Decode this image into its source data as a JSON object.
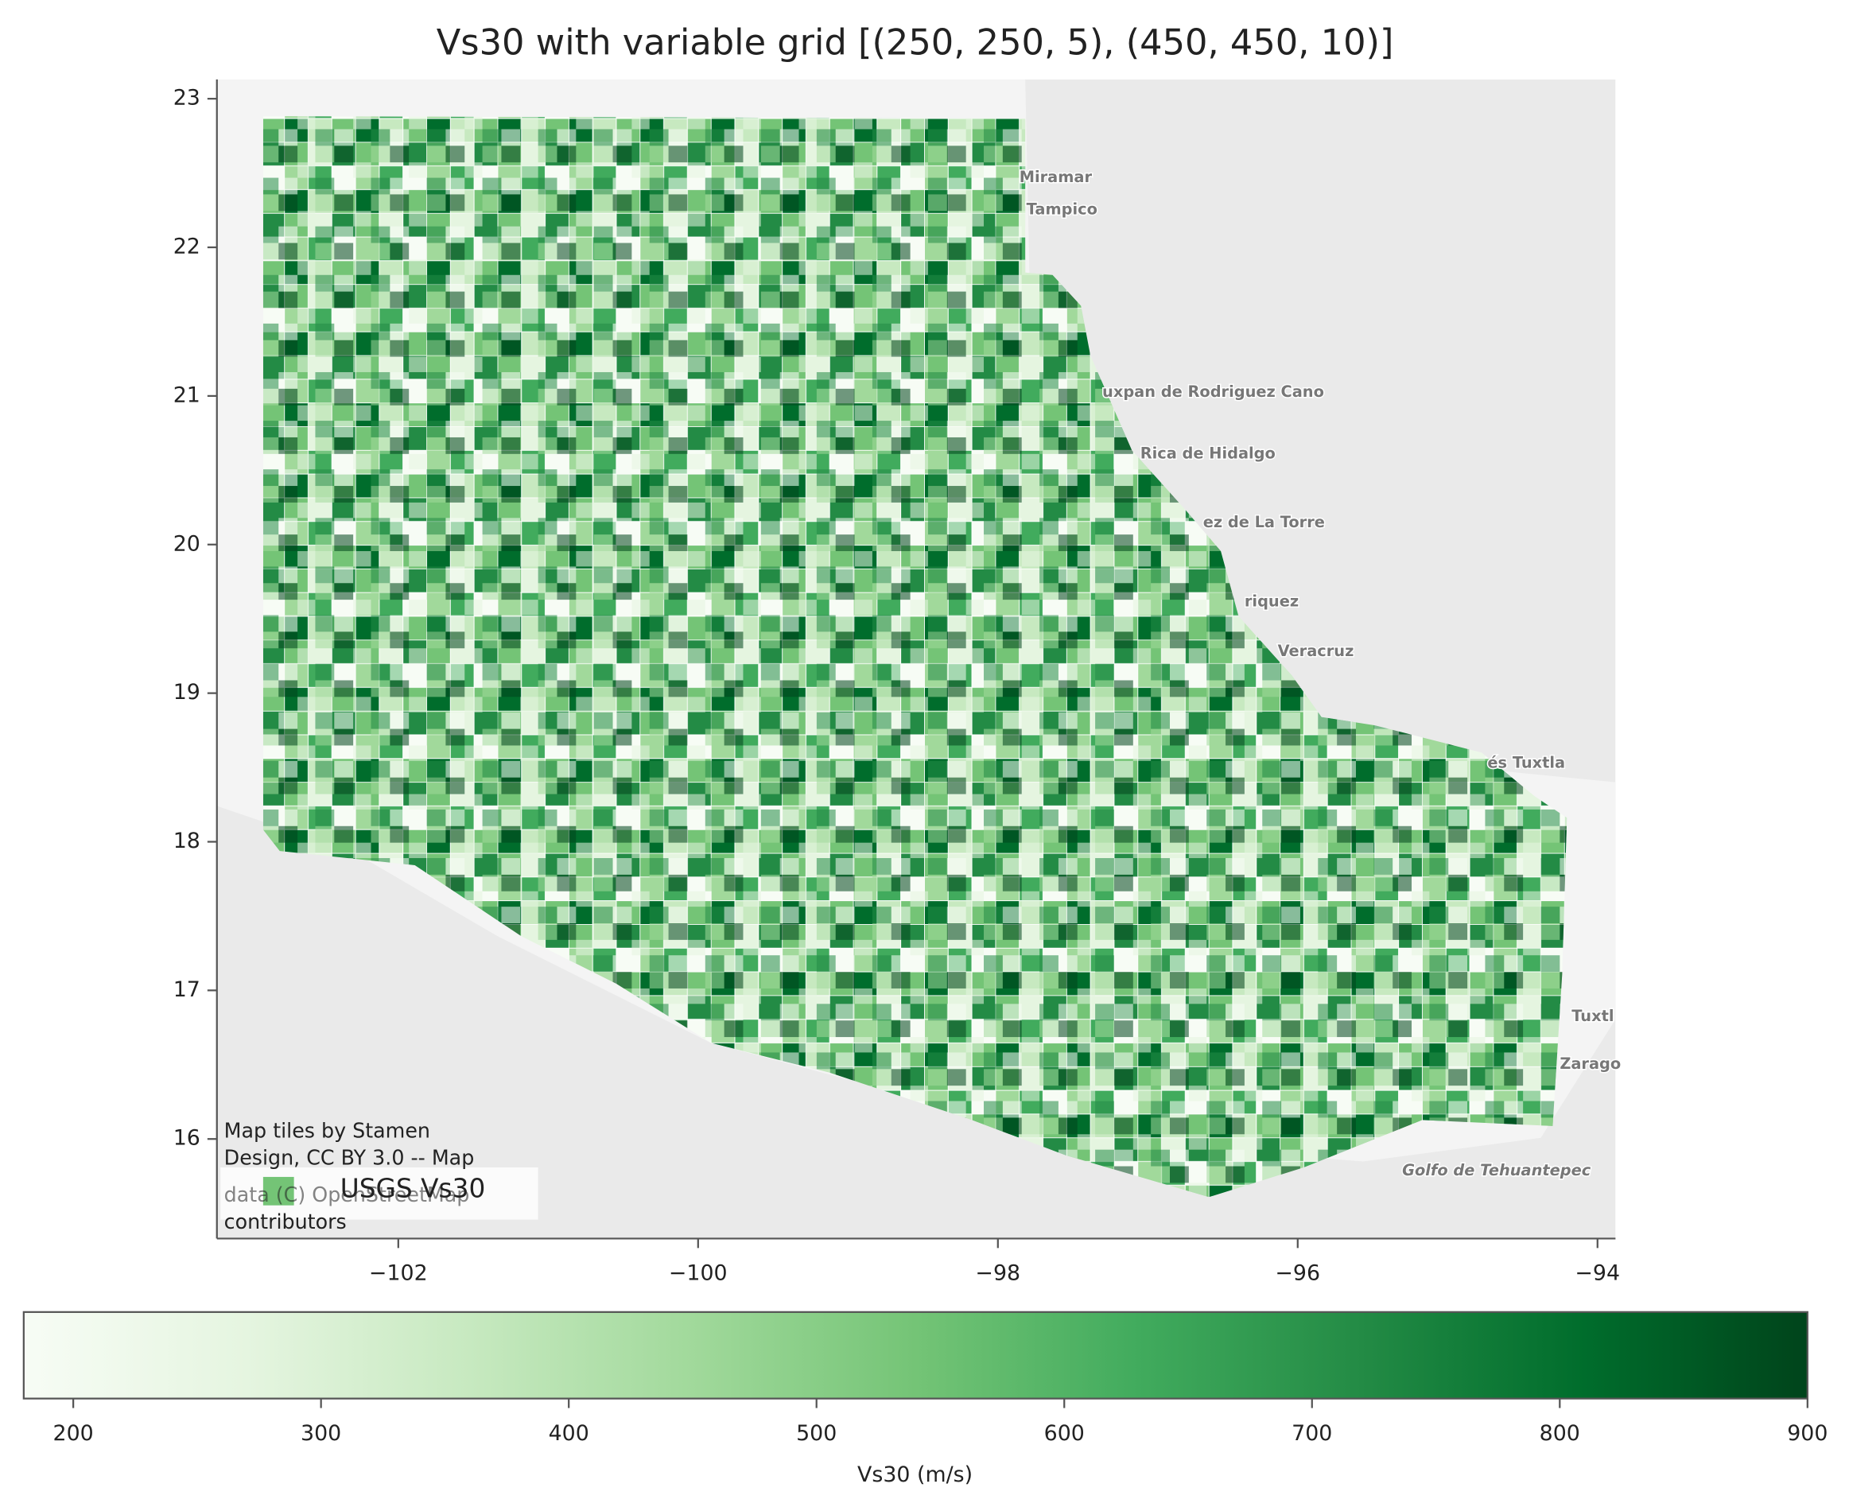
{
  "chart_data": {
    "type": "map",
    "title": "Vs30 with variable grid [(250, 250, 5), (450, 450, 10)]",
    "xlim": [
      -103.21,
      -93.88
    ],
    "xticks": [
      {
        "value": -102,
        "label": "−102"
      },
      {
        "value": -100,
        "label": "−100"
      },
      {
        "value": -98,
        "label": "−98"
      },
      {
        "value": -96,
        "label": "−96"
      },
      {
        "value": -94,
        "label": "−94"
      }
    ],
    "ylim": [
      15.33,
      23.13
    ],
    "yticks": [
      16,
      17,
      18,
      19,
      20,
      21,
      22,
      23
    ],
    "legend": {
      "label": "USGS Vs30",
      "color": "#74c476",
      "position": "lower left"
    },
    "attribution": [
      "Map tiles by Stamen",
      "Design, CC BY 3.0 -- Map",
      "data (C) OpenStreetMap",
      "contributors"
    ],
    "map_labels": [
      "Miramar",
      "Tampico",
      "uxpan de Rodriguez Cano",
      "Rica de Hidalgo",
      "ez de La Torre",
      "riquez",
      "Veracruz",
      "és Tuxtla",
      "Tuxtl",
      "Zarago",
      "Golfo de Tehuantepec"
    ],
    "colorbar": {
      "label": "Vs30 (m/s)",
      "lim": [
        180,
        900
      ],
      "ticks": [
        200,
        300,
        400,
        500,
        600,
        700,
        800,
        900
      ],
      "colors": [
        "#f7fcf5",
        "#e5f5e0",
        "#c7e9c0",
        "#a1d99b",
        "#74c476",
        "#41ab5d",
        "#238b45",
        "#006d2c",
        "#00441b"
      ]
    }
  }
}
